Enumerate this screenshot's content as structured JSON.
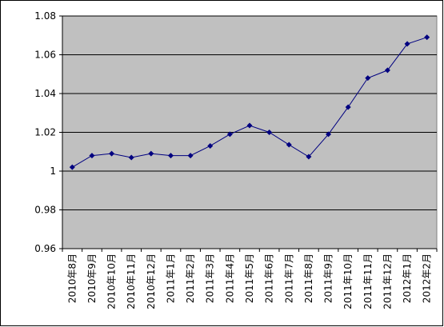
{
  "chart_data": {
    "type": "line",
    "categories": [
      "2010年8月",
      "2010年9月",
      "2010年10月",
      "2010年11月",
      "2010年12月",
      "2011年1月",
      "2011年2月",
      "2011年3月",
      "2011年4月",
      "2011年5月",
      "2011年6月",
      "2011年7月",
      "2011年8月",
      "2011年9月",
      "2011年10月",
      "2011年11月",
      "2011年12月",
      "2012年1月",
      "2012年2月"
    ],
    "values": [
      1.002,
      1.008,
      1.009,
      1.007,
      1.009,
      1.008,
      1.008,
      1.013,
      1.019,
      1.0235,
      1.02,
      1.0136,
      1.0074,
      1.019,
      1.033,
      1.048,
      1.052,
      1.0656,
      1.069
    ],
    "color": "#000080",
    "ylim": [
      0.96,
      1.08
    ],
    "yticks": [
      0.96,
      0.98,
      1,
      1.02,
      1.04,
      1.06,
      1.08
    ],
    "grid": true
  }
}
